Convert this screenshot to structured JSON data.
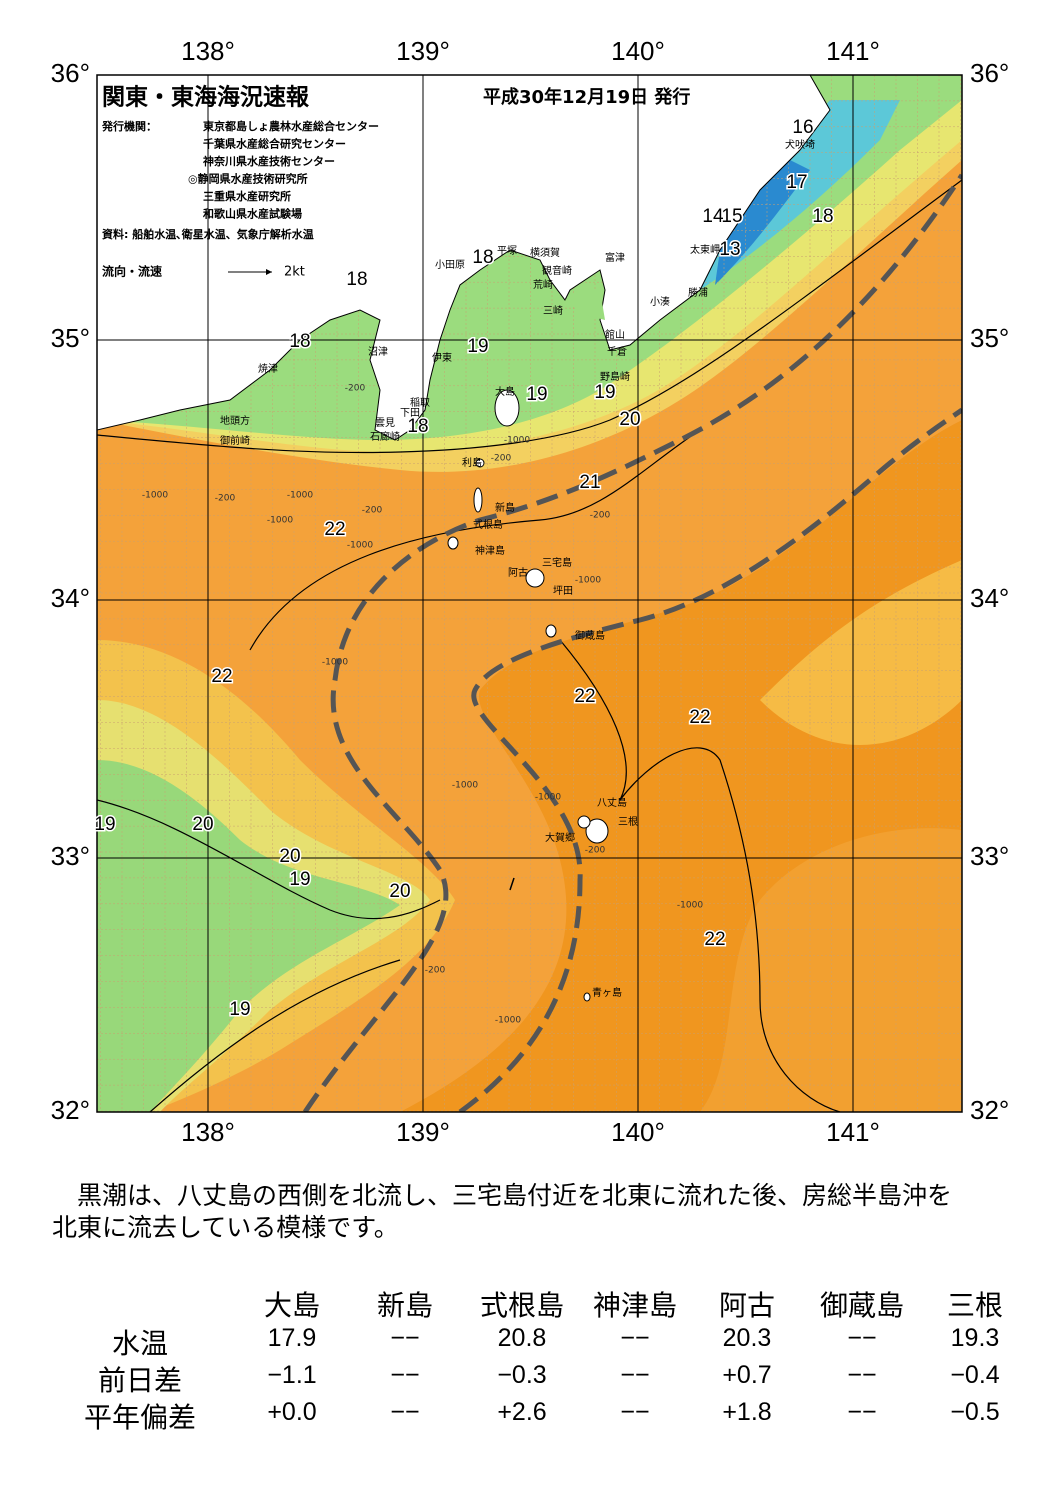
{
  "header": {
    "title": "関東・東海海況速報",
    "date": "平成30年12月19日 発行"
  },
  "publishers": {
    "label": "発行機関：",
    "items": [
      "東京都島しょ農林水産総合センター",
      "千葉県水産総合研究センター",
      "神奈川県水産技術センター",
      "◎静岡県水産技術研究所",
      "三重県水産研究所",
      "和歌山県水産試験場"
    ]
  },
  "source": "資料: 船舶水温､衛星水温、気象庁解析水温",
  "legend": {
    "label": "流向・流速",
    "scale": "2kt"
  },
  "map": {
    "lon_labels": [
      "138°",
      "139°",
      "140°",
      "141°"
    ],
    "lat_labels": [
      "36°",
      "35°",
      "34°",
      "33°",
      "32°"
    ],
    "places": [
      "犬吠埼",
      "太東岬",
      "勝浦",
      "小湊",
      "富津",
      "館山",
      "千倉",
      "野島崎",
      "横須賀",
      "観音崎",
      "荒崎",
      "三崎",
      "平塚",
      "小田原",
      "沼津",
      "伊東",
      "焼津",
      "稲取",
      "下田",
      "雲見",
      "石廊崎",
      "地頭方",
      "御前崎",
      "大島",
      "利島",
      "新島",
      "式根島",
      "神津島",
      "三宅島",
      "阿古",
      "坪田",
      "御蔵島",
      "八丈島",
      "三根",
      "大賀郷",
      "青ヶ島"
    ],
    "temperatures": [
      "16",
      "17",
      "18",
      "14",
      "15",
      "13",
      "18",
      "18",
      "18",
      "19",
      "19",
      "19",
      "20",
      "18",
      "21",
      "22",
      "22",
      "22",
      "22",
      "19",
      "20",
      "20",
      "19",
      "20",
      "22",
      "19"
    ],
    "depths": [
      "-200",
      "-1000",
      "-1000",
      "-200",
      "-1000",
      "-200",
      "-200",
      "-1000",
      "-200",
      "-1000",
      "-1000",
      "-1000",
      "-1000",
      "-1000",
      "-1000",
      "-200",
      "-200",
      "-1000"
    ]
  },
  "summary": [
    "　黒潮は、八丈島の西側を北流し、三宅島付近を北東に流れた後、房総半島沖を",
    "北東に流去している模様です。"
  ],
  "table": {
    "columns": [
      "大島",
      "新島",
      "式根島",
      "神津島",
      "阿古",
      "御蔵島",
      "三根"
    ],
    "rows": [
      {
        "label": "水温",
        "values": [
          "17.9",
          "−−",
          "20.8",
          "−−",
          "20.3",
          "−−",
          "19.3"
        ]
      },
      {
        "label": "前日差",
        "values": [
          "−1.1",
          "−−",
          "−0.3",
          "−−",
          "+0.7",
          "−−",
          "−0.4"
        ]
      },
      {
        "label": "平年偏差",
        "values": [
          "+0.0",
          "−−",
          "+2.6",
          "−−",
          "+1.8",
          "−−",
          "−0.5"
        ]
      }
    ]
  }
}
